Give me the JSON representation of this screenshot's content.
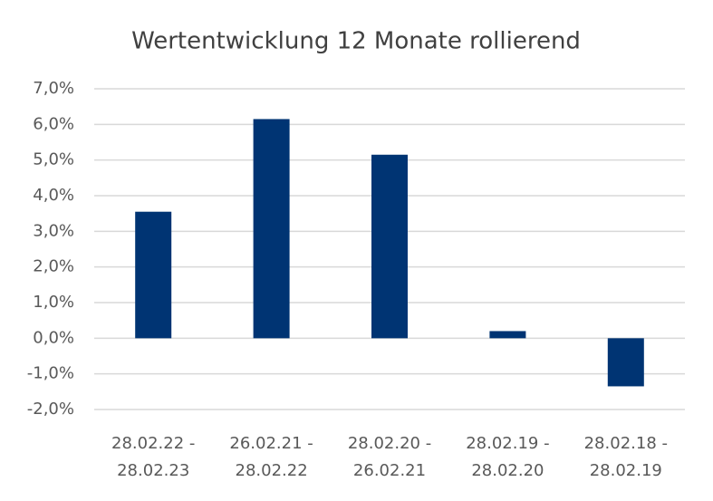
{
  "chart_data": {
    "type": "bar",
    "title": "Wertentwicklung 12 Monate rollierend",
    "categories": [
      [
        "28.02.22 -",
        "28.02.23"
      ],
      [
        "26.02.21 -",
        "28.02.22"
      ],
      [
        "28.02.20 -",
        "26.02.21"
      ],
      [
        "28.02.19 -",
        "28.02.20"
      ],
      [
        "28.02.18 -",
        "28.02.19"
      ]
    ],
    "values": [
      3.55,
      6.15,
      5.15,
      0.2,
      -1.35
    ],
    "color": "#003473",
    "ylim": [
      -2,
      7
    ],
    "yticks": [
      {
        "value": -2,
        "label": "-2,0%"
      },
      {
        "value": -1,
        "label": "-1,0%"
      },
      {
        "value": 0,
        "label": "0,0%"
      },
      {
        "value": 1,
        "label": "1,0%"
      },
      {
        "value": 2,
        "label": "2,0%"
      },
      {
        "value": 3,
        "label": "3,0%"
      },
      {
        "value": 4,
        "label": "4,0%"
      },
      {
        "value": 5,
        "label": "5,0%"
      },
      {
        "value": 6,
        "label": "6,0%"
      },
      {
        "value": 7,
        "label": "7,0%"
      }
    ],
    "grid": true
  }
}
